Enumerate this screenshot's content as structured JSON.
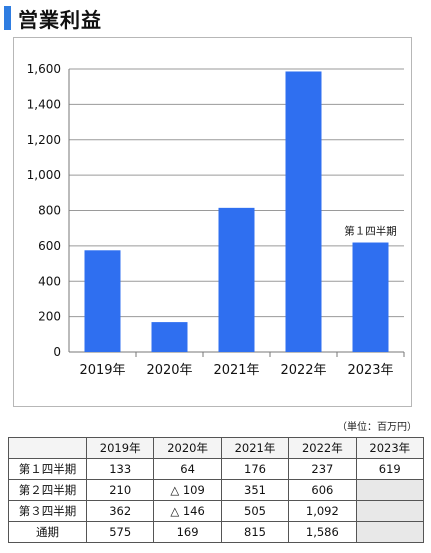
{
  "title": "営業利益",
  "unit_note": "（単位：百万円）",
  "colors": {
    "accent": "#2f7de1",
    "bar": "#2f6ff0",
    "grid": "#9a9a9a"
  },
  "chart_data": {
    "type": "bar",
    "categories": [
      "2019年",
      "2020年",
      "2021年",
      "2022年",
      "2023年"
    ],
    "values": [
      575,
      169,
      815,
      1586,
      619
    ],
    "yticks": [
      "0",
      "200",
      "400",
      "600",
      "800",
      "1,000",
      "1,200",
      "1,400",
      "1,600"
    ],
    "ylim": [
      0,
      1600
    ],
    "grid": true,
    "annotation": {
      "category": "2023年",
      "text": "第１四半期"
    }
  },
  "table": {
    "header": [
      "",
      "2019年",
      "2020年",
      "2021年",
      "2022年",
      "2023年"
    ],
    "rows": [
      [
        "第１四半期",
        "133",
        "64",
        "176",
        "237",
        "619"
      ],
      [
        "第２四半期",
        "210",
        "△ 109",
        "351",
        "606",
        ""
      ],
      [
        "第３四半期",
        "362",
        "△ 146",
        "505",
        "1,092",
        ""
      ],
      [
        "通期",
        "575",
        "169",
        "815",
        "1,586",
        ""
      ]
    ]
  }
}
